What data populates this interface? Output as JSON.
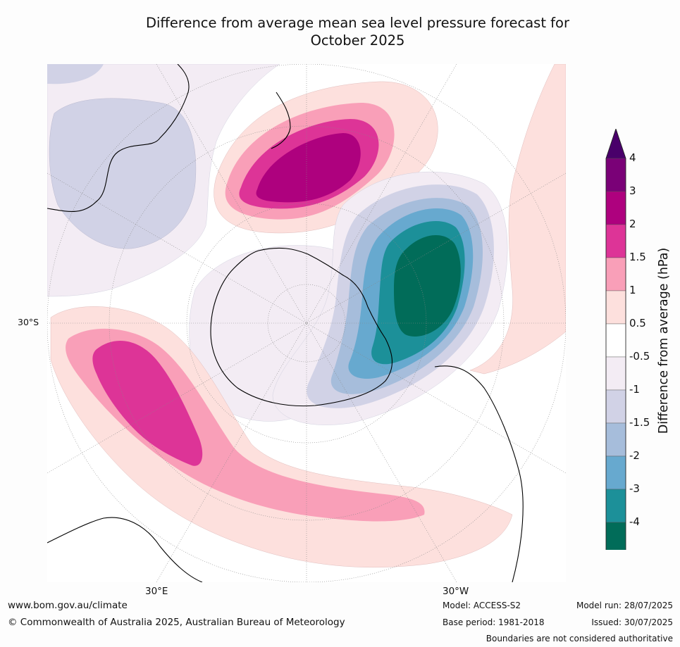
{
  "title": {
    "line1": "Difference from average mean sea level pressure forecast for",
    "line2": "October 2025"
  },
  "map": {
    "projection": "south-polar-stereographic",
    "lat_label": "30°S",
    "lon_labels": [
      "30°E",
      "30°W"
    ],
    "anomaly_features": [
      {
        "region": "Tasman Sea / New Zealand",
        "anomaly_hPa": "3 to 4",
        "sign": "positive"
      },
      {
        "region": "South-east Pacific / Drake Passage",
        "anomaly_hPa": "below -4",
        "sign": "negative"
      },
      {
        "region": "Southern Indian Ocean",
        "anomaly_hPa": "1.5 to 2",
        "sign": "positive"
      },
      {
        "region": "Australia",
        "anomaly_hPa": "-0.5 to -1",
        "sign": "negative"
      },
      {
        "region": "Antarctica",
        "anomaly_hPa": "-0.5 to -1",
        "sign": "negative"
      }
    ]
  },
  "colorbar": {
    "title": "Difference from average (hPa)",
    "ticks": [
      "4",
      "3",
      "2",
      "1.5",
      "1",
      "0.5",
      "-0.5",
      "-1",
      "-1.5",
      "-2",
      "-3",
      "-4"
    ],
    "bin_colors_top_to_bottom": [
      "#7a0177",
      "#ae017e",
      "#dd3497",
      "#f99fb8",
      "#fde0dd",
      "#ffffff",
      "#f3ecf4",
      "#d1d2e6",
      "#a6bddb",
      "#67a9cf",
      "#1c9099",
      "#016c59"
    ],
    "extend_max_color": "#49006a",
    "extend_min_color": "#01665e"
  },
  "footer": {
    "website": "www.bom.gov.au/climate",
    "copyright": "© Commonwealth of Australia 2025, Australian Bureau of Meteorology",
    "model": "Model: ACCESS-S2",
    "base_period": "Base period: 1981-2018",
    "model_run": "Model run: 28/07/2025",
    "issued": "Issued: 30/07/2025",
    "disclaimer": "Boundaries are not considered authoritative"
  }
}
